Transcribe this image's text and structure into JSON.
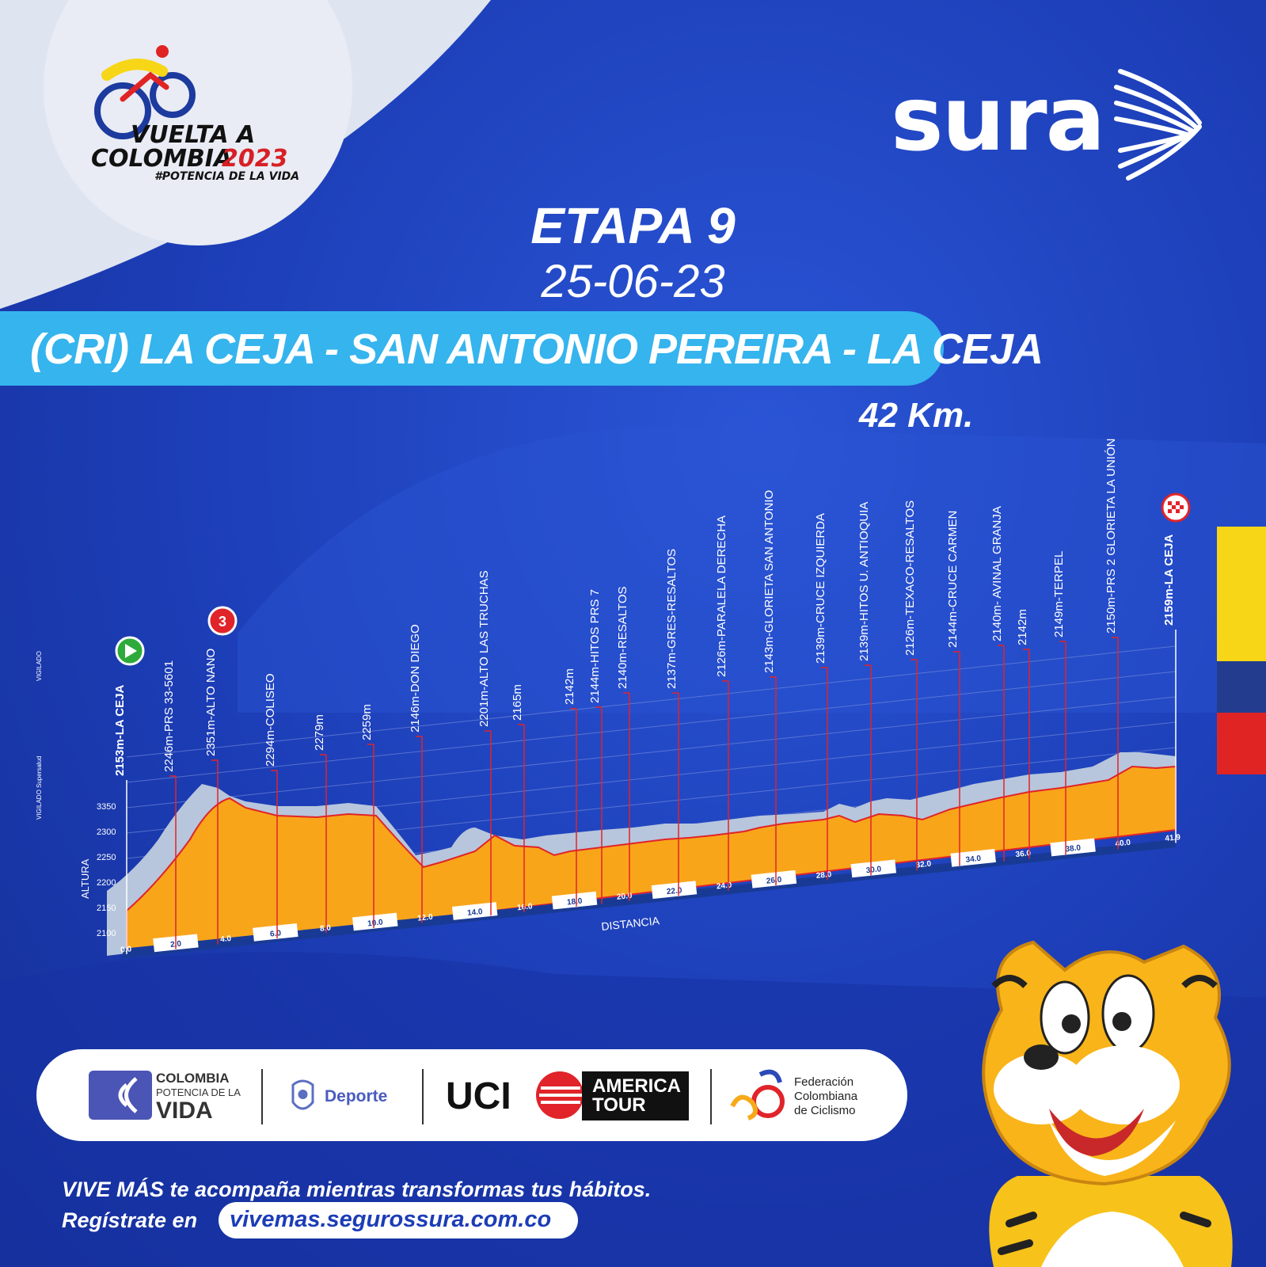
{
  "event": {
    "logo_text_line1": "VUELTA A",
    "logo_text_line2": "COLOMBIA",
    "logo_year": "2023",
    "logo_hashtag": "#POTENCIA DE LA VIDA"
  },
  "sponsor_main": "sura",
  "stage": {
    "title": "ETAPA 9",
    "date": "25-06-23",
    "route": "(CRI)  LA CEJA - SAN ANTONIO PEREIRA - LA CEJA",
    "distance": "42 Km."
  },
  "profile": {
    "y_axis_label": "ALTURA",
    "x_axis_label": "DISTANCIA",
    "y_ticks": [
      "3350",
      "2300",
      "2250",
      "2200",
      "2150",
      "2100"
    ],
    "x_ticks": [
      "0.0",
      "2.0",
      "4.0",
      "6.0",
      "8.0",
      "10.0",
      "12.0",
      "14.0",
      "16.0",
      "18.0",
      "20.0",
      "22.0",
      "24.0",
      "26.0",
      "28.0",
      "30.0",
      "32.0",
      "34.0",
      "36.0",
      "38.0",
      "40.0",
      "41.9"
    ],
    "waypoints": [
      "2153m-LA CEJA",
      "2246m-PRS 33-5601",
      "2351m-ALTO NANO",
      "2294m-COLISEO",
      "2279m",
      "2259m",
      "2146m-DON DIEGO",
      "2201m-ALTO LAS TRUCHAS",
      "2165m",
      "2142m",
      "2144m-HITOS PRS 7",
      "2140m-RESALTOS",
      "2137m-GRES-RESALTOS",
      "2126m-PARALELA DERECHA",
      "2143m-GLORIETA SAN ANTONIO",
      "2139m-CRUCE IZQUIERDA",
      "2139m-HITOS U. ANTIOQUIA",
      "2126m-TEXACO-RESALTOS",
      "2144m-CRUCE CARMEN",
      "2140m- AVINAL GRANJA",
      "2142m",
      "2149m-TERPEL",
      "2150m-PRS 2 GLORIETA LA UNIÓN",
      "2159m-LA CEJA"
    ],
    "mountain_marker": "3",
    "side_text_1": "VIGILADO",
    "side_text_2": "VIGILADO Supersalud"
  },
  "sponsors": {
    "colombia_line1": "COLOMBIA",
    "colombia_line2": "POTENCIA DE LA",
    "colombia_line3": "VIDA",
    "deporte": "Deporte",
    "uci": "UCI",
    "america_tour_1": "AMERICA",
    "america_tour_2": "TOUR",
    "fcc_1": "Federación",
    "fcc_2": "Colombiana",
    "fcc_3": "de Ciclismo"
  },
  "footer": {
    "line1": "VIVE MÁS te acompaña mientras transformas tus hábitos.",
    "line2": "Regístrate en",
    "url": "vivemas.segurossura.com.co"
  },
  "colors": {
    "background": "#1c3db6",
    "banner": "#35b4ee",
    "profile_fill": "#f9a51a",
    "profile_shadow": "#b7c6dc",
    "marker_line": "#e0242a"
  }
}
